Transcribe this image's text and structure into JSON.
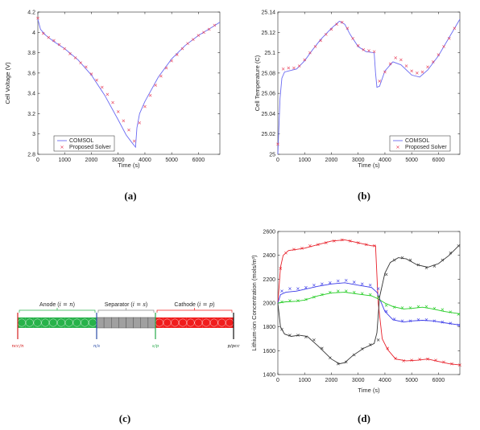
{
  "colors": {
    "comsol": "#6b6bf2",
    "proposed": "#e8405a",
    "anode": "#27b24a",
    "separator": "#a0a0a0",
    "cathode": "#f01d1d",
    "red": "#e8202a",
    "blue": "#3a3ae8",
    "green": "#22cc22",
    "black": "#333333"
  },
  "captions": [
    "(a)",
    "(b)",
    "(c)",
    "(d)"
  ],
  "chart_data": [
    {
      "id": "a",
      "type": "line",
      "xlabel": "Time (s)",
      "ylabel": "Cell Voltage (V)",
      "xlim": [
        0,
        6800
      ],
      "ylim": [
        2.8,
        4.2
      ],
      "xticks": [
        0,
        1000,
        2000,
        3000,
        4000,
        5000,
        6000
      ],
      "yticks": [
        2.8,
        3,
        3.2,
        3.4,
        3.6,
        3.8,
        4,
        4.2
      ],
      "ytick_labels": [
        "2.8",
        "3",
        "3.2",
        "3.4",
        "3.6",
        "3.8",
        "4",
        "4.2"
      ],
      "legend": {
        "placement": "bottom-left",
        "entries": [
          "COMSOL",
          "Proposed Solver"
        ]
      },
      "series": [
        {
          "name": "COMSOL",
          "style": "line",
          "x": [
            0,
            100,
            300,
            600,
            1000,
            1500,
            2000,
            2500,
            3000,
            3300,
            3500,
            3650,
            3700,
            3800,
            4000,
            4500,
            5000,
            5500,
            6000,
            6500,
            6800
          ],
          "y": [
            4.13,
            4.03,
            3.97,
            3.91,
            3.84,
            3.73,
            3.58,
            3.38,
            3.14,
            2.99,
            2.92,
            2.87,
            3.06,
            3.2,
            3.32,
            3.56,
            3.74,
            3.87,
            3.97,
            4.05,
            4.1
          ]
        },
        {
          "name": "Proposed Solver",
          "style": "marker",
          "x": [
            0,
            200,
            400,
            600,
            800,
            1000,
            1200,
            1400,
            1600,
            1800,
            2000,
            2200,
            2400,
            2600,
            2800,
            3000,
            3200,
            3400,
            3600,
            3800,
            4000,
            4200,
            4400,
            4600,
            4800,
            5000,
            5200,
            5400,
            5600,
            5800,
            6000,
            6200,
            6400,
            6600
          ],
          "y": [
            4.14,
            3.99,
            3.95,
            3.92,
            3.88,
            3.84,
            3.79,
            3.75,
            3.7,
            3.66,
            3.59,
            3.53,
            3.46,
            3.39,
            3.31,
            3.22,
            3.13,
            3.04,
            2.93,
            3.11,
            3.27,
            3.38,
            3.48,
            3.57,
            3.65,
            3.72,
            3.78,
            3.84,
            3.89,
            3.93,
            3.97,
            4.0,
            4.03,
            4.07
          ]
        }
      ]
    },
    {
      "id": "b",
      "type": "line",
      "xlabel": "Time (s)",
      "ylabel": "Cell Temperature (C)",
      "xlim": [
        0,
        6800
      ],
      "ylim": [
        25.0,
        25.14
      ],
      "xticks": [
        0,
        1000,
        2000,
        3000,
        4000,
        5000,
        6000
      ],
      "yticks": [
        25.0,
        25.02,
        25.04,
        25.06,
        25.08,
        25.1,
        25.12,
        25.14
      ],
      "ytick_labels": [
        "25",
        "25.02",
        "25.04",
        "25.06",
        "25.08",
        "25.1",
        "25.12",
        "25.14"
      ],
      "legend": {
        "placement": "bottom-right",
        "entries": [
          "COMSOL",
          "Proposed Solver"
        ]
      },
      "series": [
        {
          "name": "COMSOL",
          "style": "line",
          "x": [
            0,
            80,
            150,
            250,
            400,
            700,
            1000,
            1300,
            1600,
            2000,
            2300,
            2500,
            2700,
            3000,
            3300,
            3600,
            3650,
            3700,
            3800,
            4000,
            4300,
            4600,
            5000,
            5300,
            5600,
            6000,
            6400,
            6800
          ],
          "y": [
            25.0,
            25.055,
            25.075,
            25.081,
            25.082,
            25.084,
            25.092,
            25.103,
            25.113,
            25.124,
            25.131,
            25.128,
            25.118,
            25.106,
            25.101,
            25.1,
            25.08,
            25.066,
            25.067,
            25.082,
            25.091,
            25.088,
            25.078,
            25.076,
            25.083,
            25.097,
            25.115,
            25.133
          ]
        },
        {
          "name": "Proposed Solver",
          "style": "marker",
          "x": [
            0,
            200,
            400,
            600,
            800,
            1000,
            1200,
            1400,
            1600,
            1800,
            2000,
            2200,
            2400,
            2600,
            2800,
            3000,
            3200,
            3400,
            3600,
            3800,
            4000,
            4200,
            4400,
            4600,
            4800,
            5000,
            5200,
            5400,
            5600,
            5800,
            6000,
            6200,
            6400,
            6600
          ],
          "y": [
            25.01,
            25.084,
            25.085,
            25.085,
            25.087,
            25.093,
            25.1,
            25.106,
            25.112,
            25.118,
            25.123,
            25.128,
            25.13,
            25.124,
            25.114,
            25.107,
            25.103,
            25.102,
            25.101,
            25.072,
            25.081,
            25.089,
            25.095,
            25.093,
            25.087,
            25.082,
            25.08,
            25.081,
            25.086,
            25.091,
            25.098,
            25.106,
            25.114,
            25.124
          ]
        }
      ]
    },
    {
      "id": "d",
      "type": "line",
      "xlabel": "Time (s)",
      "ylabel": "Lithium-ion Concentration (mols/m³)",
      "xlim": [
        0,
        6800
      ],
      "ylim": [
        1400,
        2600
      ],
      "xticks": [
        0,
        1000,
        2000,
        3000,
        4000,
        5000,
        6000
      ],
      "yticks": [
        1400,
        1600,
        1800,
        2000,
        2200,
        2400,
        2600
      ],
      "ytick_labels": [
        "1400",
        "1600",
        "1800",
        "2000",
        "2200",
        "2400",
        "2600"
      ],
      "series": [
        {
          "color": "red",
          "style": "line",
          "x": [
            0,
            100,
            200,
            400,
            700,
            1000,
            1500,
            2000,
            2500,
            3000,
            3500,
            3650,
            3750,
            3900,
            4100,
            4400,
            4800,
            5200,
            5600,
            6000,
            6400,
            6800
          ],
          "y": [
            2000,
            2300,
            2400,
            2440,
            2450,
            2460,
            2490,
            2520,
            2530,
            2505,
            2480,
            2480,
            2000,
            1700,
            1610,
            1530,
            1515,
            1520,
            1530,
            1510,
            1490,
            1480
          ]
        },
        {
          "color": "red",
          "style": "marker",
          "x": [
            100,
            300,
            600,
            900,
            1200,
            1500,
            1800,
            2100,
            2400,
            2700,
            3000,
            3300,
            3600,
            4100,
            4400,
            4700,
            5000,
            5300,
            5600,
            5900,
            6200,
            6500,
            6800
          ],
          "y": [
            2290,
            2420,
            2450,
            2460,
            2480,
            2490,
            2505,
            2520,
            2530,
            2520,
            2505,
            2490,
            2480,
            1620,
            1535,
            1515,
            1520,
            1528,
            1530,
            1520,
            1505,
            1490,
            1480
          ]
        },
        {
          "color": "blue",
          "style": "line",
          "x": [
            0,
            100,
            300,
            700,
            1000,
            1500,
            2000,
            2500,
            3000,
            3500,
            3700,
            4000,
            4300,
            4700,
            5000,
            5400,
            5800,
            6200,
            6800
          ],
          "y": [
            2000,
            2070,
            2090,
            2100,
            2115,
            2140,
            2160,
            2170,
            2150,
            2130,
            2090,
            1930,
            1860,
            1840,
            1850,
            1855,
            1850,
            1835,
            1815
          ]
        },
        {
          "color": "blue",
          "style": "marker",
          "x": [
            150,
            450,
            750,
            1050,
            1350,
            1650,
            1950,
            2250,
            2550,
            2850,
            3150,
            3450,
            3750,
            4050,
            4350,
            4650,
            4950,
            5250,
            5550,
            5850,
            6150,
            6450,
            6750
          ],
          "y": [
            2100,
            2120,
            2120,
            2130,
            2150,
            2160,
            2170,
            2185,
            2190,
            2175,
            2160,
            2150,
            2120,
            1930,
            1865,
            1850,
            1850,
            1860,
            1860,
            1850,
            1840,
            1830,
            1815
          ]
        },
        {
          "color": "green",
          "style": "line",
          "x": [
            0,
            300,
            700,
            1000,
            1500,
            2000,
            2500,
            3000,
            3500,
            3700,
            4000,
            4300,
            4700,
            5000,
            5400,
            5800,
            6200,
            6800
          ],
          "y": [
            2000,
            2010,
            2015,
            2025,
            2060,
            2085,
            2090,
            2075,
            2060,
            2040,
            2000,
            1970,
            1950,
            1955,
            1965,
            1950,
            1930,
            1910
          ]
        },
        {
          "color": "green",
          "style": "marker",
          "x": [
            150,
            450,
            750,
            1050,
            1350,
            1650,
            1950,
            2250,
            2550,
            2850,
            3150,
            3450,
            3750,
            4050,
            4350,
            4650,
            4950,
            5250,
            5550,
            5850,
            6150,
            6450,
            6750
          ],
          "y": [
            2010,
            2020,
            2020,
            2030,
            2050,
            2070,
            2090,
            2100,
            2100,
            2090,
            2080,
            2070,
            2050,
            1980,
            1965,
            1960,
            1960,
            1970,
            1970,
            1955,
            1945,
            1925,
            1905
          ]
        },
        {
          "color": "black",
          "style": "line",
          "x": [
            0,
            100,
            250,
            500,
            800,
            1100,
            1500,
            2000,
            2300,
            2500,
            2800,
            3200,
            3600,
            3700,
            3800,
            4000,
            4200,
            4500,
            4800,
            5200,
            5600,
            6000,
            6400,
            6800
          ],
          "y": [
            2000,
            1800,
            1740,
            1720,
            1730,
            1720,
            1640,
            1530,
            1490,
            1500,
            1560,
            1620,
            1660,
            1750,
            2050,
            2250,
            2340,
            2380,
            2370,
            2320,
            2300,
            2330,
            2400,
            2490
          ]
        },
        {
          "color": "black",
          "style": "marker",
          "x": [
            150,
            450,
            750,
            1050,
            1350,
            1650,
            1950,
            2250,
            2550,
            2850,
            3150,
            3450,
            3750,
            4050,
            4350,
            4650,
            4950,
            5250,
            5550,
            5850,
            6150,
            6450,
            6750
          ],
          "y": [
            1780,
            1730,
            1730,
            1715,
            1690,
            1620,
            1540,
            1490,
            1505,
            1565,
            1615,
            1650,
            1690,
            2240,
            2360,
            2380,
            2360,
            2320,
            2295,
            2310,
            2360,
            2420,
            2480
          ]
        }
      ]
    }
  ],
  "diagram_c": {
    "regions": [
      {
        "label": "Anode (",
        "sub": "i = n",
        "close": ")"
      },
      {
        "label": "Separator (",
        "sub": "i = s",
        "close": ")"
      },
      {
        "label": "Cathode (",
        "sub": "i = p",
        "close": ")"
      }
    ],
    "boundaries": [
      "ncc/n",
      "n/s",
      "s/p",
      "p/pcc"
    ]
  }
}
